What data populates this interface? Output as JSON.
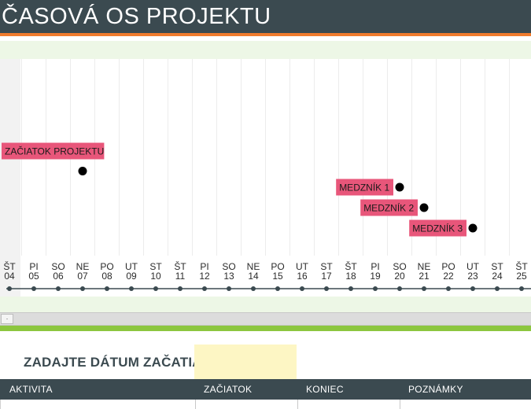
{
  "header": {
    "title": "ČASOVÁ OS PROJEKTU"
  },
  "timeline": {
    "days": [
      {
        "dow": "ŠT",
        "day": "04"
      },
      {
        "dow": "PI",
        "day": "05"
      },
      {
        "dow": "SO",
        "day": "06"
      },
      {
        "dow": "NE",
        "day": "07"
      },
      {
        "dow": "PO",
        "day": "08"
      },
      {
        "dow": "UT",
        "day": "09"
      },
      {
        "dow": "ST",
        "day": "10"
      },
      {
        "dow": "ŠT",
        "day": "11"
      },
      {
        "dow": "PI",
        "day": "12"
      },
      {
        "dow": "SO",
        "day": "13"
      },
      {
        "dow": "NE",
        "day": "14"
      },
      {
        "dow": "PO",
        "day": "15"
      },
      {
        "dow": "UT",
        "day": "16"
      },
      {
        "dow": "ST",
        "day": "17"
      },
      {
        "dow": "ŠT",
        "day": "18"
      },
      {
        "dow": "PI",
        "day": "19"
      },
      {
        "dow": "SO",
        "day": "20"
      },
      {
        "dow": "NE",
        "day": "21"
      },
      {
        "dow": "PO",
        "day": "22"
      },
      {
        "dow": "UT",
        "day": "23"
      },
      {
        "dow": "ST",
        "day": "24"
      },
      {
        "dow": "ŠT",
        "day": "25"
      }
    ],
    "events": [
      {
        "label": "ZAČIATOK PROJEKTU",
        "day_index": 3,
        "level": 1
      },
      {
        "label": "MEDZNÍK 1",
        "day_index": 16,
        "level": 2
      },
      {
        "label": "MEDZNÍK 2",
        "day_index": 17,
        "level": 3
      },
      {
        "label": "MEDZNÍK 3",
        "day_index": 19,
        "level": 4
      }
    ],
    "colors": {
      "label_bg": "#e8567a",
      "marker": "#000000",
      "axis_line": "#3b4a50",
      "axis_dot": "#3b4a50",
      "grid": "#ececec"
    }
  },
  "start_date": {
    "label": "ZADAJTE DÁTUM ZAČATIA:",
    "value": ""
  },
  "table": {
    "headers": [
      "AKTIVITA",
      "ZAČIATOK",
      "KONIEC",
      "POZNÁMKY"
    ]
  }
}
